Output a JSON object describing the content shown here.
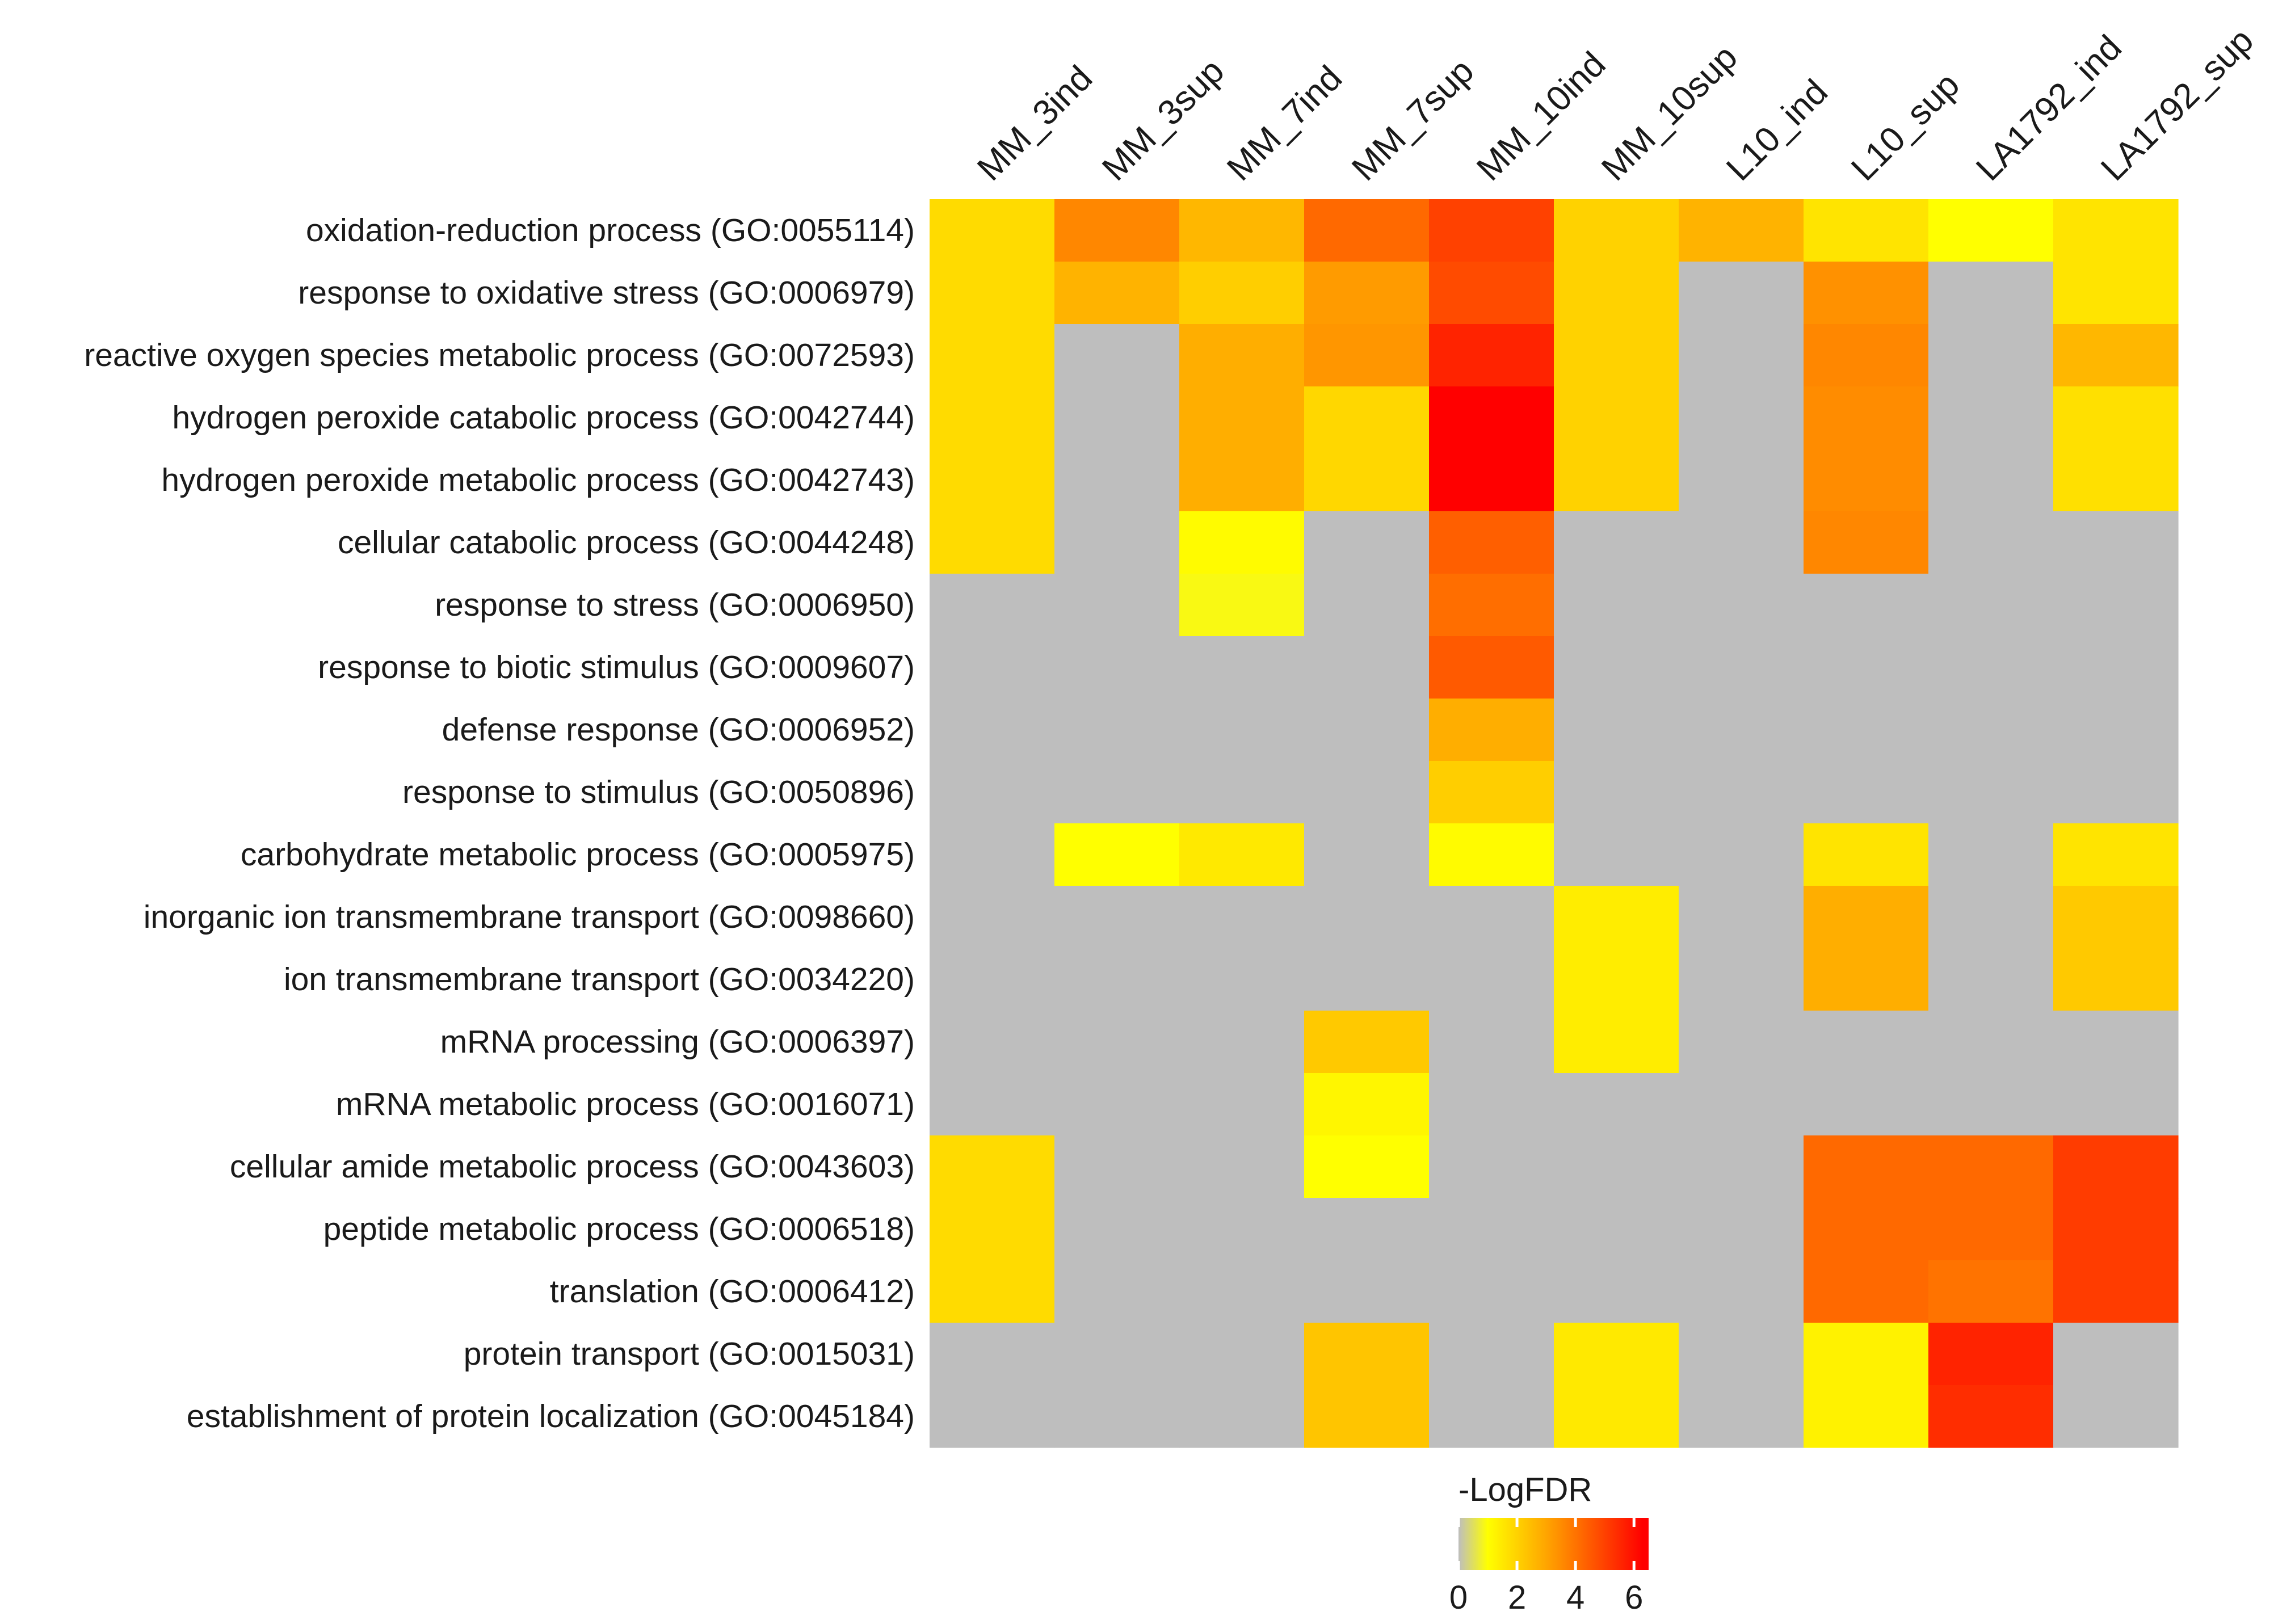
{
  "chart_data": {
    "type": "heatmap",
    "title": "",
    "columns": [
      "MM_3ind",
      "MM_3sup",
      "MM_7ind",
      "MM_7sup",
      "MM_10ind",
      "MM_10sup",
      "L10_ind",
      "L10_sup",
      "LA1792_ind",
      "LA1792_sup"
    ],
    "rows": [
      "oxidation-reduction process (GO:0055114)",
      "response to oxidative stress (GO:0006979)",
      "reactive oxygen species metabolic process (GO:0072593)",
      "hydrogen peroxide catabolic process (GO:0042744)",
      "hydrogen peroxide metabolic process (GO:0042743)",
      "cellular catabolic process (GO:0044248)",
      "response to stress (GO:0006950)",
      "response to biotic stimulus (GO:0009607)",
      "defense response (GO:0006952)",
      "response to stimulus (GO:0050896)",
      "carbohydrate metabolic process (GO:0005975)",
      "inorganic ion transmembrane transport (GO:0098660)",
      "ion transmembrane transport (GO:0034220)",
      "mRNA processing (GO:0006397)",
      "mRNA metabolic process (GO:0016071)",
      "cellular amide metabolic process (GO:0043603)",
      "peptide metabolic process (GO:0006518)",
      "translation (GO:0006412)",
      "protein transport (GO:0015031)",
      "establishment of protein localization (GO:0045184)"
    ],
    "values": [
      [
        1.8,
        3.6,
        2.6,
        4.2,
        5.0,
        2.0,
        2.7,
        1.6,
        1.0,
        1.6
      ],
      [
        1.8,
        2.7,
        2.1,
        3.2,
        4.8,
        2.0,
        null,
        3.4,
        null,
        1.6
      ],
      [
        1.8,
        null,
        2.8,
        3.3,
        5.6,
        2.0,
        null,
        3.6,
        null,
        2.6
      ],
      [
        1.8,
        null,
        2.8,
        1.9,
        6.3,
        2.0,
        null,
        3.5,
        null,
        1.7
      ],
      [
        1.8,
        null,
        2.8,
        1.9,
        6.3,
        2.0,
        null,
        3.5,
        null,
        1.7
      ],
      [
        1.8,
        null,
        1.1,
        null,
        4.4,
        null,
        null,
        3.6,
        null,
        null
      ],
      [
        null,
        null,
        0.9,
        null,
        4.1,
        null,
        null,
        null,
        null,
        null
      ],
      [
        null,
        null,
        null,
        null,
        4.5,
        null,
        null,
        null,
        null,
        null
      ],
      [
        null,
        null,
        null,
        null,
        2.8,
        null,
        null,
        null,
        null,
        null
      ],
      [
        null,
        null,
        null,
        null,
        2.1,
        null,
        null,
        null,
        null,
        null
      ],
      [
        null,
        1.0,
        1.5,
        null,
        1.1,
        null,
        null,
        1.6,
        null,
        1.6
      ],
      [
        null,
        null,
        null,
        null,
        null,
        1.4,
        null,
        2.8,
        null,
        2.2
      ],
      [
        null,
        null,
        null,
        null,
        null,
        1.4,
        null,
        2.8,
        null,
        2.2
      ],
      [
        null,
        null,
        null,
        2.2,
        null,
        1.4,
        null,
        null,
        null,
        null
      ],
      [
        null,
        null,
        null,
        1.2,
        null,
        null,
        null,
        null,
        null,
        null
      ],
      [
        1.8,
        null,
        null,
        1.0,
        null,
        null,
        null,
        4.2,
        4.2,
        5.1
      ],
      [
        1.8,
        null,
        null,
        null,
        null,
        null,
        null,
        4.2,
        4.2,
        5.1
      ],
      [
        1.8,
        null,
        null,
        null,
        null,
        null,
        null,
        4.2,
        4.0,
        5.1
      ],
      [
        null,
        null,
        null,
        2.3,
        null,
        1.5,
        null,
        1.3,
        5.6,
        null
      ],
      [
        null,
        null,
        null,
        2.3,
        null,
        1.5,
        null,
        1.3,
        5.4,
        null
      ]
    ],
    "na_color": "#bebebe",
    "legend": {
      "title": "-LogFDR",
      "ticks": [
        0,
        2,
        4,
        6
      ],
      "tick_labels": [
        "0",
        "2",
        "4",
        "6"
      ],
      "range": [
        0,
        6.5
      ],
      "color_stops": [
        {
          "value": 0,
          "color": "#bebebe"
        },
        {
          "value": 1,
          "color": "#ffff00"
        },
        {
          "value": 3,
          "color": "#ffa500"
        },
        {
          "value": 6.3,
          "color": "#ff0000"
        }
      ]
    }
  }
}
